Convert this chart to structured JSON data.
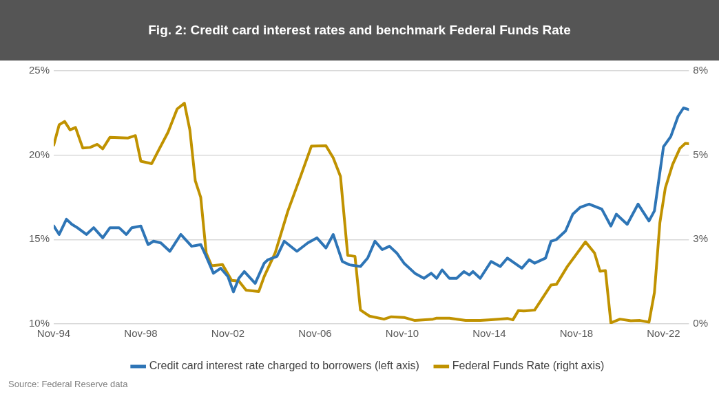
{
  "chart_data": {
    "type": "line",
    "title": "Fig. 2: Credit card interest rates and benchmark Federal Funds Rate",
    "annotations": [
      "Source: Federal Reserve data"
    ],
    "xlim": [
      "1994-11",
      "2024-01"
    ],
    "xticks": [
      {
        "value": "1994-11",
        "label": "Nov-94"
      },
      {
        "value": "1998-11",
        "label": "Nov-98"
      },
      {
        "value": "2002-11",
        "label": "Nov-02"
      },
      {
        "value": "2006-11",
        "label": "Nov-06"
      },
      {
        "value": "2010-11",
        "label": "Nov-10"
      },
      {
        "value": "2014-11",
        "label": "Nov-14"
      },
      {
        "value": "2018-11",
        "label": "Nov-18"
      },
      {
        "value": "2022-11",
        "label": "Nov-22"
      }
    ],
    "ylim": [
      10,
      25
    ],
    "yticks": [
      {
        "value": 10,
        "label": "10%"
      },
      {
        "value": 15,
        "label": "15%"
      },
      {
        "value": 20,
        "label": "20%"
      },
      {
        "value": 25,
        "label": "25%"
      }
    ],
    "y2lim": [
      0,
      7.5
    ],
    "y2ticks": [
      {
        "value": 0,
        "label": "0%"
      },
      {
        "value": 2.5,
        "label": "3%"
      },
      {
        "value": 5,
        "label": "5%"
      },
      {
        "value": 7.5,
        "label": "8%"
      }
    ],
    "grid": "y",
    "legend": "bottom",
    "marker": "none",
    "line_style": "solid",
    "series": [
      {
        "name": "Credit card interest rate charged to borrowers (left axis)",
        "color": "#2e75b6",
        "x": [
          "1994-11",
          "1995-02",
          "1995-06",
          "1995-09",
          "1995-12",
          "1996-05",
          "1996-09",
          "1997-02",
          "1997-06",
          "1997-11",
          "1998-03",
          "1998-06",
          "1998-11",
          "1999-03",
          "1999-06",
          "1999-10",
          "2000-03",
          "2000-09",
          "2001-03",
          "2001-08",
          "2001-11",
          "2002-03",
          "2002-07",
          "2002-11",
          "2003-02",
          "2003-05",
          "2003-08",
          "2004-02",
          "2004-07",
          "2004-09",
          "2005-02",
          "2005-06",
          "2006-01",
          "2006-07",
          "2006-12",
          "2007-05",
          "2007-09",
          "2008-02",
          "2008-06",
          "2008-12",
          "2009-04",
          "2009-08",
          "2009-12",
          "2010-04",
          "2010-08",
          "2010-12",
          "2011-06",
          "2011-11",
          "2012-03",
          "2012-06",
          "2012-09",
          "2013-01",
          "2013-05",
          "2013-09",
          "2013-12",
          "2014-02",
          "2014-06",
          "2014-12",
          "2015-05",
          "2015-09",
          "2016-05",
          "2016-09",
          "2016-12",
          "2017-06",
          "2017-09",
          "2017-12",
          "2018-05",
          "2018-09",
          "2019-01",
          "2019-06",
          "2020-01",
          "2020-06",
          "2020-09",
          "2021-03",
          "2021-09",
          "2022-03",
          "2022-06",
          "2022-11",
          "2023-03",
          "2023-07",
          "2023-10",
          "2024-01"
        ],
        "values": [
          15.8,
          15.3,
          16.2,
          15.9,
          15.7,
          15.3,
          15.7,
          15.1,
          15.7,
          15.7,
          15.3,
          15.7,
          15.8,
          14.7,
          14.9,
          14.8,
          14.3,
          15.3,
          14.6,
          14.7,
          14.0,
          13.0,
          13.3,
          12.8,
          11.9,
          12.7,
          13.1,
          12.4,
          13.6,
          13.8,
          14.0,
          14.9,
          14.3,
          14.8,
          15.1,
          14.5,
          15.3,
          13.7,
          13.5,
          13.4,
          13.9,
          14.9,
          14.4,
          14.6,
          14.2,
          13.6,
          13.0,
          12.7,
          13.0,
          12.7,
          13.2,
          12.7,
          12.7,
          13.1,
          12.9,
          13.1,
          12.7,
          13.7,
          13.4,
          13.9,
          13.3,
          13.8,
          13.6,
          13.9,
          14.9,
          15.0,
          15.5,
          16.5,
          16.9,
          17.1,
          16.8,
          15.8,
          16.5,
          15.9,
          17.1,
          16.1,
          16.7,
          20.5,
          21.1,
          22.3,
          22.8,
          22.7
        ]
      },
      {
        "name": "Federal Funds Rate (right axis)",
        "color": "#c09200",
        "axis": "y2",
        "x": [
          "1994-11",
          "1995-02",
          "1995-05",
          "1995-08",
          "1995-11",
          "1996-03",
          "1996-07",
          "1996-11",
          "1997-02",
          "1997-06",
          "1998-04",
          "1998-08",
          "1998-11",
          "1999-05",
          "1999-09",
          "2000-02",
          "2000-07",
          "2000-11",
          "2001-02",
          "2001-05",
          "2001-08",
          "2001-11",
          "2002-02",
          "2002-08",
          "2003-01",
          "2003-05",
          "2003-09",
          "2004-04",
          "2004-07",
          "2005-01",
          "2005-08",
          "2006-03",
          "2006-09",
          "2007-05",
          "2007-09",
          "2008-01",
          "2008-05",
          "2008-09",
          "2008-12",
          "2009-05",
          "2010-01",
          "2010-05",
          "2010-12",
          "2011-06",
          "2012-04",
          "2012-06",
          "2013-01",
          "2013-10",
          "2014-06",
          "2014-12",
          "2015-09",
          "2015-12",
          "2016-03",
          "2016-06",
          "2016-12",
          "2017-09",
          "2017-12",
          "2018-06",
          "2019-04",
          "2019-09",
          "2019-12",
          "2020-03",
          "2020-06",
          "2020-11",
          "2021-05",
          "2021-10",
          "2022-03",
          "2022-06",
          "2022-09",
          "2022-12",
          "2023-04",
          "2023-08",
          "2023-11",
          "2024-01"
        ],
        "values": [
          5.3,
          5.9,
          6.0,
          5.75,
          5.82,
          5.21,
          5.23,
          5.32,
          5.19,
          5.53,
          5.51,
          5.58,
          4.82,
          4.75,
          5.17,
          5.68,
          6.37,
          6.54,
          5.75,
          4.24,
          3.75,
          2.1,
          1.72,
          1.76,
          1.29,
          1.27,
          1.0,
          0.96,
          1.41,
          2.1,
          3.34,
          4.37,
          5.27,
          5.28,
          4.92,
          4.37,
          2.03,
          2.0,
          0.41,
          0.23,
          0.14,
          0.21,
          0.19,
          0.1,
          0.14,
          0.17,
          0.17,
          0.1,
          0.1,
          0.12,
          0.16,
          0.12,
          0.39,
          0.38,
          0.41,
          1.15,
          1.17,
          1.7,
          2.43,
          2.1,
          1.56,
          1.58,
          0.03,
          0.14,
          0.09,
          0.1,
          0.05,
          0.93,
          3.0,
          4.03,
          4.72,
          5.2,
          5.35,
          5.34
        ]
      }
    ]
  }
}
